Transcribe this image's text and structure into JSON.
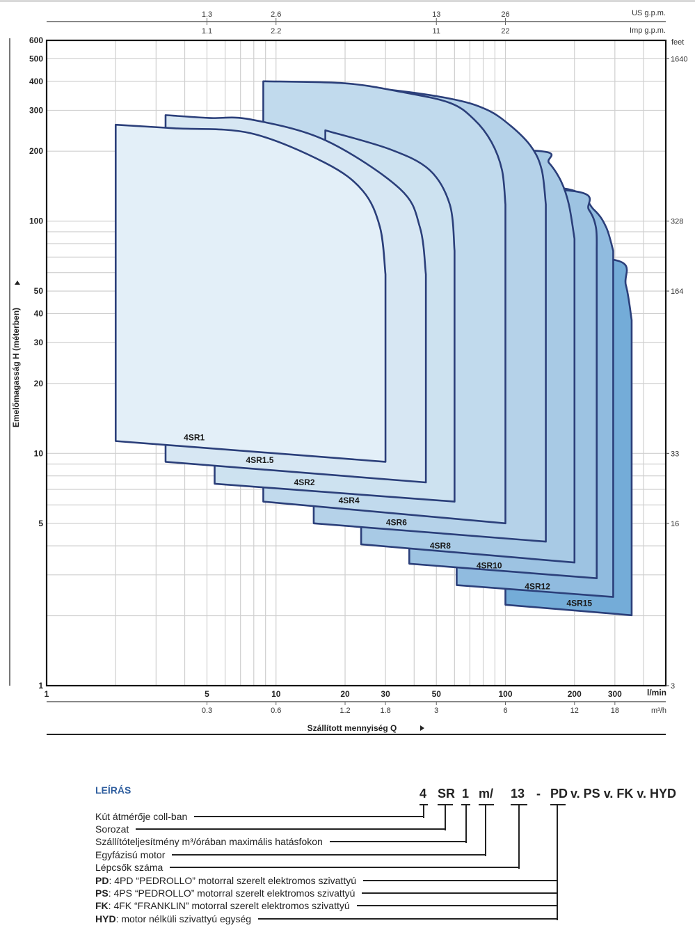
{
  "chart_data": {
    "type": "area",
    "title": "",
    "xlabel": "Szállított mennyiség Q",
    "ylabel": "Emelőmagasság H (méterben)",
    "x_unit": "l/min",
    "xscale": "log",
    "yscale": "log",
    "xlim": [
      1,
      500
    ],
    "ylim": [
      1,
      600
    ],
    "grid": true,
    "x_ticks": [
      "1",
      "5",
      "10",
      "20",
      "30",
      "50",
      "100",
      "200",
      "300"
    ],
    "x_tick_values": [
      1,
      5,
      10,
      20,
      30,
      50,
      100,
      200,
      300
    ],
    "y_ticks": [
      "600",
      "500",
      "400",
      "300",
      "200",
      "100",
      "50",
      "40",
      "30",
      "20",
      "10",
      "5",
      "1"
    ],
    "y_tick_values": [
      600,
      500,
      400,
      300,
      200,
      100,
      50,
      40,
      30,
      20,
      10,
      5,
      1
    ],
    "secondary_axes": {
      "us_gpm": {
        "unit": "US g.p.m.",
        "ticks": [
          {
            "at": 5,
            "label": "1.3"
          },
          {
            "at": 10,
            "label": "2.6"
          },
          {
            "at": 50,
            "label": "13"
          },
          {
            "at": 100,
            "label": "26"
          }
        ]
      },
      "imp_gpm": {
        "unit": "Imp g.p.m.",
        "ticks": [
          {
            "at": 5,
            "label": "1.1"
          },
          {
            "at": 10,
            "label": "2.2"
          },
          {
            "at": 50,
            "label": "11"
          },
          {
            "at": 100,
            "label": "22"
          }
        ]
      },
      "m3h": {
        "unit": "m³/h",
        "ticks": [
          {
            "at": 5,
            "label": "0.3"
          },
          {
            "at": 10,
            "label": "0.6"
          },
          {
            "at": 20,
            "label": "1.2"
          },
          {
            "at": 30,
            "label": "1.8"
          },
          {
            "at": 50,
            "label": "3"
          },
          {
            "at": 100,
            "label": "6"
          },
          {
            "at": 200,
            "label": "12"
          },
          {
            "at": 300,
            "label": "18"
          }
        ]
      },
      "feet": {
        "unit": "feet",
        "ticks": [
          {
            "at": 500,
            "label": "1640"
          },
          {
            "at": 100,
            "label": "328"
          },
          {
            "at": 50,
            "label": "164"
          },
          {
            "at": 10,
            "label": "33"
          },
          {
            "at": 5,
            "label": "16"
          },
          {
            "at": 1,
            "label": "3"
          }
        ]
      }
    },
    "series": [
      {
        "name": "4SR1",
        "color": "#e3eff8",
        "label_at": [
          4.4,
          11.4
        ],
        "points": [
          [
            2,
            11.3
          ],
          [
            2,
            260
          ],
          [
            3.6,
            251
          ],
          [
            7.75,
            239
          ],
          [
            16.4,
            178
          ],
          [
            23.9,
            135
          ],
          [
            28.4,
            94
          ],
          [
            30,
            59
          ],
          [
            30,
            9.2
          ]
        ]
      },
      {
        "name": "4SR1.5",
        "color": "#d7e7f3",
        "label_at": [
          8.5,
          9.1
        ],
        "points": [
          [
            3.3,
            9.2
          ],
          [
            3.3,
            286
          ],
          [
            5.1,
            278
          ],
          [
            7.75,
            274
          ],
          [
            16.4,
            223
          ],
          [
            34.6,
            138
          ],
          [
            42.4,
            94
          ],
          [
            45,
            59
          ],
          [
            45,
            7.5
          ]
        ]
      },
      {
        "name": "4SR2",
        "color": "#cde2f0",
        "label_at": [
          13.3,
          7.3
        ],
        "points": [
          [
            5.4,
            7.4
          ],
          [
            5.4,
            197
          ],
          [
            16.4,
            197
          ],
          [
            16.4,
            246
          ],
          [
            31.3,
            204
          ],
          [
            46.7,
            166
          ],
          [
            57.2,
            118
          ],
          [
            60,
            74.5
          ],
          [
            60,
            6.2
          ]
        ]
      },
      {
        "name": "4SR4",
        "color": "#c1daed",
        "label_at": [
          20.8,
          6.1
        ],
        "points": [
          [
            8.8,
            6.2
          ],
          [
            8.8,
            400
          ],
          [
            20,
            392
          ],
          [
            34.6,
            361
          ],
          [
            57.2,
            323
          ],
          [
            73,
            274
          ],
          [
            86.9,
            219
          ],
          [
            96.6,
            166
          ],
          [
            100,
            118
          ],
          [
            100,
            5.0
          ]
        ]
      },
      {
        "name": "4SR6",
        "color": "#b5d2e9",
        "label_at": [
          33.5,
          4.9
        ],
        "points": [
          [
            14.6,
            5.0
          ],
          [
            14.6,
            379
          ],
          [
            28.4,
            371
          ],
          [
            57.2,
            337
          ],
          [
            82.8,
            302
          ],
          [
            106,
            256
          ],
          [
            130,
            208
          ],
          [
            144,
            166
          ],
          [
            150,
            118
          ],
          [
            150,
            4.17
          ]
        ]
      },
      {
        "name": "4SR8",
        "color": "#a8cae5",
        "label_at": [
          52,
          3.9
        ],
        "points": [
          [
            23.5,
            4.06
          ],
          [
            23.5,
            197
          ],
          [
            133,
            201
          ],
          [
            155,
            178
          ],
          [
            175,
            148
          ],
          [
            189,
            118
          ],
          [
            200,
            84
          ],
          [
            200,
            3.39
          ]
        ]
      },
      {
        "name": "4SR10",
        "color": "#9dc3e2",
        "label_at": [
          85,
          3.2
        ],
        "points": [
          [
            38.1,
            3.35
          ],
          [
            38.1,
            135
          ],
          [
            194,
            135
          ],
          [
            231,
            112
          ],
          [
            248,
            94
          ],
          [
            250,
            74.5
          ],
          [
            250,
            2.9
          ]
        ]
      },
      {
        "name": "4SR12",
        "color": "#90bbdf",
        "label_at": [
          138,
          2.6
        ],
        "points": [
          [
            61.3,
            2.71
          ],
          [
            61.3,
            137
          ],
          [
            182,
            138
          ],
          [
            243,
            112
          ],
          [
            275,
            94
          ],
          [
            295,
            74.5
          ],
          [
            295,
            2.41
          ]
        ]
      },
      {
        "name": "4SR15",
        "color": "#74acd8",
        "label_at": [
          210,
          2.2
        ],
        "points": [
          [
            100,
            2.23
          ],
          [
            100,
            67
          ],
          [
            300,
            68
          ],
          [
            335,
            53
          ],
          [
            355,
            37.5
          ],
          [
            355,
            2.01
          ]
        ]
      }
    ],
    "colors": {
      "outline": "#2b3f7a",
      "grid": "#cfcfcf",
      "frame": "#111111"
    }
  },
  "description": {
    "title": "LEÍRÁS",
    "code": [
      "4",
      "SR",
      "1",
      "m/",
      "13",
      "-",
      "PD"
    ],
    "code_rest": "v. PS v. FK v. HYD",
    "rows": [
      {
        "bold": "",
        "text": "Kút átmérője coll-ban"
      },
      {
        "bold": "",
        "text": "Sorozat"
      },
      {
        "bold": "",
        "text": "Szállítóteljesítmény m³/órában maximális hatásfokon"
      },
      {
        "bold": "",
        "text": "Egyfázisú motor"
      },
      {
        "bold": "",
        "text": "Lépcsők száma"
      },
      {
        "bold": "PD",
        "text": ": 4PD “PEDROLLO” motorral szerelt elektromos szivattyú"
      },
      {
        "bold": "PS",
        "text": ": 4PS “PEDROLLO” motorral szerelt elektromos szivattyú"
      },
      {
        "bold": "FK",
        "text": ": 4FK “FRANKLIN” motorral szerelt elektromos szivattyú"
      },
      {
        "bold": "HYD",
        "text": ": motor nélküli szivattyú egység"
      }
    ]
  }
}
